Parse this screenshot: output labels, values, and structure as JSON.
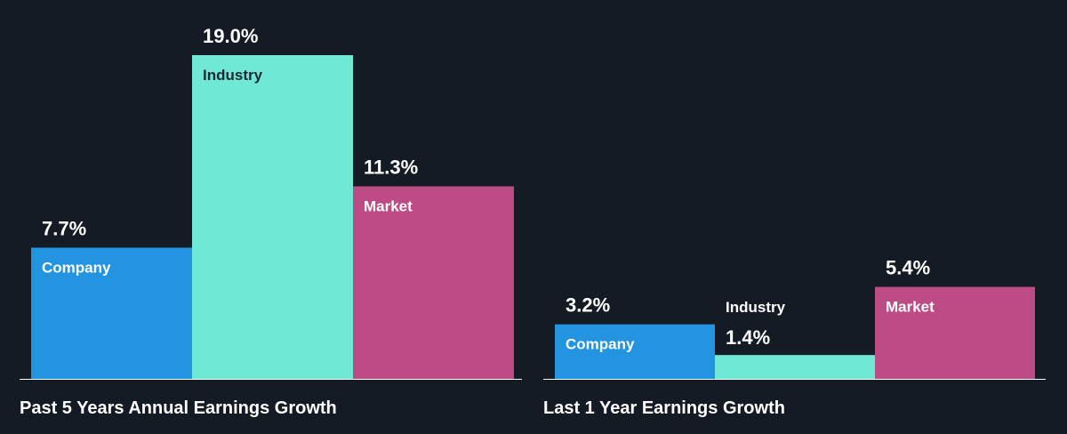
{
  "colors": {
    "background": "#151b24",
    "Company": "#2394df",
    "Industry": "#6fe8d5",
    "Market": "#bd4b86",
    "baseline": "#ffffff"
  },
  "chart_data": [
    {
      "type": "bar",
      "title": "Past 5 Years Annual Earnings Growth",
      "categories": [
        "Company",
        "Industry",
        "Market"
      ],
      "values": [
        7.7,
        19.0,
        11.3
      ],
      "value_labels": [
        "7.7%",
        "19.0%",
        "11.3%"
      ],
      "unit": "%",
      "ylim": [
        0,
        19.0
      ],
      "grid": false,
      "legend": "none"
    },
    {
      "type": "bar",
      "title": "Last 1 Year Earnings Growth",
      "categories": [
        "Company",
        "Industry",
        "Market"
      ],
      "values": [
        3.2,
        1.4,
        5.4
      ],
      "value_labels": [
        "3.2%",
        "1.4%",
        "5.4%"
      ],
      "unit": "%",
      "ylim": [
        0,
        19.0
      ],
      "grid": false,
      "legend": "none"
    }
  ]
}
